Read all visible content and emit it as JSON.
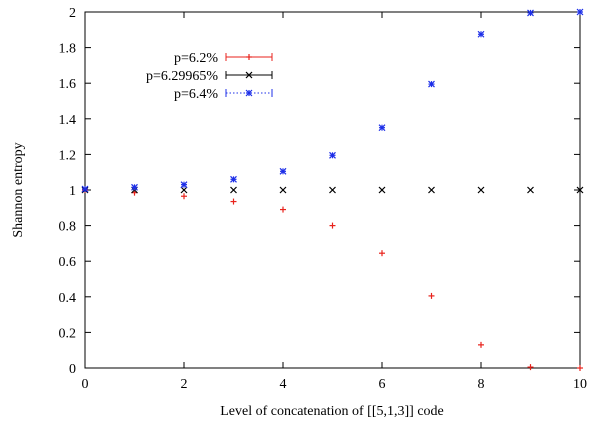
{
  "chart_data": {
    "type": "scatter",
    "xlabel": "Level of concatenation of [[5,1,3]] code",
    "ylabel": "Shannon entropy",
    "xlim": [
      0,
      10
    ],
    "ylim": [
      0,
      2
    ],
    "x_ticks": [
      "0",
      "2",
      "4",
      "6",
      "8",
      "10"
    ],
    "y_ticks": [
      "0",
      "0.2",
      "0.4",
      "0.6",
      "0.8",
      "1",
      "1.2",
      "1.4",
      "1.6",
      "1.8",
      "2"
    ],
    "grid": false,
    "legend_position": "top-left",
    "series": [
      {
        "name": "p=6.2%",
        "marker": "plus",
        "line_style": "solid",
        "color": "#e8221b",
        "x": [
          0,
          1,
          2,
          3,
          4,
          5,
          6,
          7,
          8,
          9,
          10
        ],
        "y": [
          1.0,
          0.985,
          0.965,
          0.935,
          0.89,
          0.8,
          0.645,
          0.405,
          0.13,
          0.005,
          0.0
        ]
      },
      {
        "name": "p=6.29965%",
        "marker": "cross",
        "line_style": "solid",
        "color": "#000000",
        "x": [
          0,
          1,
          2,
          3,
          4,
          5,
          6,
          7,
          8,
          9,
          10
        ],
        "y": [
          1.0,
          1.0,
          1.0,
          1.0,
          1.0,
          1.0,
          1.0,
          1.0,
          1.0,
          1.0,
          1.0
        ]
      },
      {
        "name": "p=6.4%",
        "marker": "star",
        "line_style": "dotted",
        "color": "#1d2fe8",
        "x": [
          0,
          1,
          2,
          3,
          4,
          5,
          6,
          7,
          8,
          9,
          10
        ],
        "y": [
          1.005,
          1.015,
          1.03,
          1.06,
          1.105,
          1.195,
          1.35,
          1.595,
          1.875,
          1.995,
          2.0
        ]
      }
    ]
  }
}
